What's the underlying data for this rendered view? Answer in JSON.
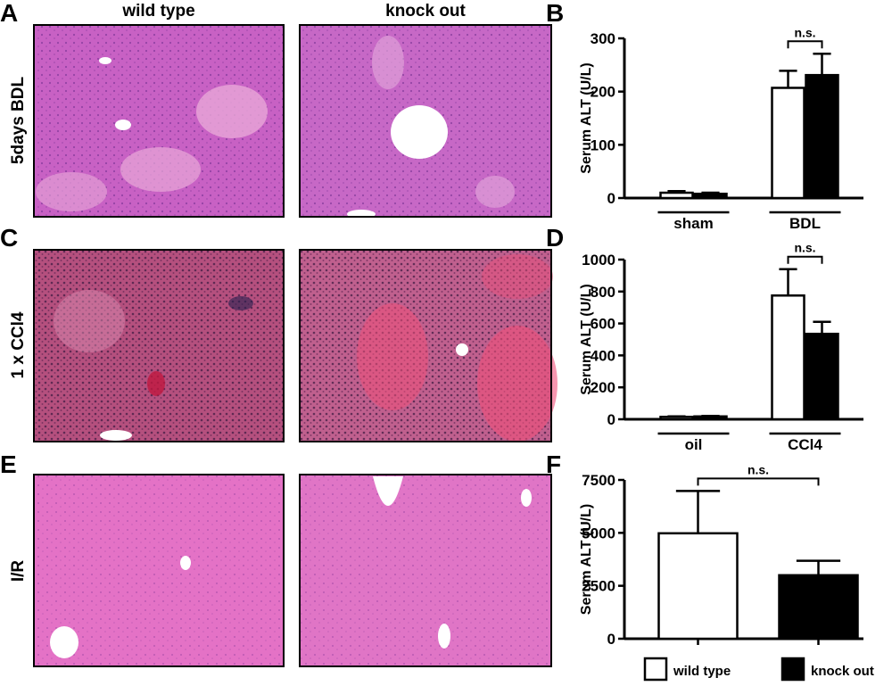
{
  "figure": {
    "panel_letters": [
      "A",
      "B",
      "C",
      "D",
      "E",
      "F"
    ],
    "column_headers": [
      "wild type",
      "knock out"
    ],
    "row_labels": [
      "5days BDL",
      "1 x CCl4",
      "I/R"
    ]
  },
  "chart_data": [
    {
      "type": "bar",
      "ylabel": "Serum ALT (U/L)",
      "categories": [
        "sham",
        "BDL"
      ],
      "series": [
        {
          "color": "#ffffff",
          "values": [
            10,
            207
          ],
          "errors": [
            3,
            32
          ]
        },
        {
          "color": "#000000",
          "values": [
            8,
            231
          ],
          "errors": [
            2,
            40
          ]
        }
      ],
      "ylim": [
        0,
        300
      ],
      "yticks": [
        0,
        100,
        200,
        300
      ],
      "annotation": "n.s."
    },
    {
      "type": "bar",
      "ylabel": "Serum ALT (U/L)",
      "categories": [
        "oil",
        "CCl4"
      ],
      "series": [
        {
          "color": "#ffffff",
          "values": [
            15,
            775
          ],
          "errors": [
            3,
            165
          ]
        },
        {
          "color": "#000000",
          "values": [
            18,
            535
          ],
          "errors": [
            3,
            75
          ]
        }
      ],
      "ylim": [
        0,
        1000
      ],
      "yticks": [
        0,
        200,
        400,
        600,
        800,
        1000
      ],
      "annotation": "n.s."
    },
    {
      "type": "bar",
      "ylabel": "Serum ALT (U/L)",
      "categories": [
        null
      ],
      "series": [
        {
          "name": "wild type",
          "color": "#ffffff",
          "values": [
            4980
          ],
          "errors": [
            2000
          ]
        },
        {
          "name": "knock out",
          "color": "#000000",
          "values": [
            3000
          ],
          "errors": [
            680
          ]
        }
      ],
      "ylim": [
        0,
        7500
      ],
      "yticks": [
        0,
        2500,
        5000,
        7500
      ],
      "annotation": "n.s.",
      "legend": "bottom"
    }
  ]
}
